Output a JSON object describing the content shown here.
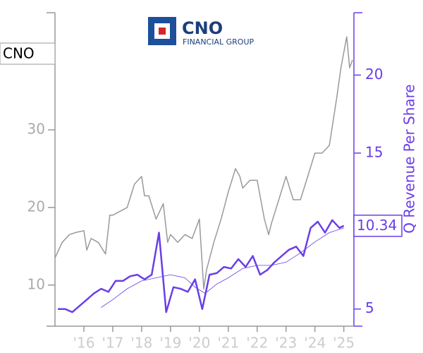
{
  "chart_data": {
    "type": "line",
    "logo_text": "CNO",
    "logo_subtext": "FINANCIAL GROUP",
    "y2_label": "Q Revenue Per Share",
    "xlim": [
      2015.0,
      2025.35
    ],
    "xticks": [
      {
        "value": 2016,
        "label": "'16"
      },
      {
        "value": 2017,
        "label": "'17"
      },
      {
        "value": 2018,
        "label": "'18"
      },
      {
        "value": 2019,
        "label": "'19"
      },
      {
        "value": 2020,
        "label": "'20"
      },
      {
        "value": 2021,
        "label": "'21"
      },
      {
        "value": 2022,
        "label": "'22"
      },
      {
        "value": 2023,
        "label": "'23"
      },
      {
        "value": 2024,
        "label": "'24"
      },
      {
        "value": 2025,
        "label": "'25"
      }
    ],
    "ylim": [
      4.7,
      45.1
    ],
    "yticks": [
      10,
      20,
      30
    ],
    "y2lim": [
      3.9,
      24.0
    ],
    "y2ticks": [
      5,
      10,
      15,
      20
    ],
    "series": [
      {
        "name": "CNO",
        "color": "#999999",
        "axis": "y",
        "width": 1.5,
        "x": [
          2015.0,
          2015.25,
          2015.5,
          2015.75,
          2016.0,
          2016.1,
          2016.25,
          2016.5,
          2016.75,
          2016.9,
          2017.0,
          2017.25,
          2017.5,
          2017.75,
          2018.0,
          2018.1,
          2018.25,
          2018.5,
          2018.75,
          2018.9,
          2019.0,
          2019.25,
          2019.5,
          2019.75,
          2020.0,
          2020.15,
          2020.25,
          2020.5,
          2020.75,
          2021.0,
          2021.25,
          2021.4,
          2021.5,
          2021.75,
          2022.0,
          2022.25,
          2022.4,
          2022.5,
          2022.75,
          2023.0,
          2023.25,
          2023.5,
          2023.75,
          2024.0,
          2024.25,
          2024.5,
          2024.75,
          2024.9,
          2025.0,
          2025.1,
          2025.2,
          2025.3
        ],
        "values": [
          13.5,
          15.5,
          16.5,
          16.8,
          17,
          14.5,
          16,
          15.5,
          14,
          19,
          19,
          19.5,
          20,
          23,
          24,
          21.5,
          21.5,
          18.5,
          20.5,
          15.5,
          16.5,
          15.5,
          16.5,
          16,
          18.5,
          9.5,
          12,
          15.5,
          18.5,
          22,
          25,
          24,
          22.5,
          23.5,
          23.5,
          18.5,
          16.5,
          18,
          21,
          24,
          21,
          21,
          24,
          27,
          27,
          28,
          34,
          38,
          40,
          42,
          38,
          39
        ]
      },
      {
        "name": "Q Revenue",
        "color": "#6a3ee8",
        "axis": "y2",
        "width": 2.5,
        "x": [
          2015.1,
          2015.35,
          2015.6,
          2015.85,
          2016.1,
          2016.35,
          2016.6,
          2016.85,
          2017.1,
          2017.35,
          2017.6,
          2017.85,
          2018.1,
          2018.35,
          2018.6,
          2018.85,
          2019.1,
          2019.35,
          2019.6,
          2019.85,
          2020.1,
          2020.35,
          2020.6,
          2020.85,
          2021.1,
          2021.35,
          2021.6,
          2021.85,
          2022.1,
          2022.35,
          2022.6,
          2022.85,
          2023.1,
          2023.35,
          2023.6,
          2023.85,
          2024.1,
          2024.35,
          2024.6,
          2024.85,
          2025.0
        ],
        "values": [
          5.0,
          5.0,
          4.8,
          5.2,
          5.6,
          6.0,
          6.3,
          6.1,
          6.8,
          6.8,
          7.1,
          7.2,
          6.9,
          7.2,
          9.9,
          4.8,
          6.4,
          6.3,
          6.1,
          6.9,
          5.0,
          7.2,
          7.3,
          7.7,
          7.6,
          8.2,
          7.7,
          8.4,
          7.2,
          7.5,
          8.0,
          8.4,
          8.8,
          9.0,
          8.4,
          10.2,
          10.6,
          9.9,
          10.7,
          10.2,
          10.34
        ]
      },
      {
        "name": "Q Revenue Avg",
        "color": "#6a3ee8",
        "axis": "y2",
        "width": 0.8,
        "x": [
          2016.6,
          2017.0,
          2017.5,
          2018.0,
          2018.5,
          2019.0,
          2019.5,
          2019.85,
          2020.2,
          2020.6,
          2021.0,
          2021.5,
          2022.0,
          2022.5,
          2023.0,
          2023.5,
          2024.0,
          2024.5,
          2025.0
        ],
        "values": [
          5.1,
          5.6,
          6.3,
          6.8,
          7.0,
          7.2,
          7.0,
          6.4,
          6.0,
          6.6,
          7.0,
          7.6,
          7.8,
          7.8,
          8.0,
          8.6,
          9.3,
          9.9,
          10.2
        ]
      }
    ]
  }
}
